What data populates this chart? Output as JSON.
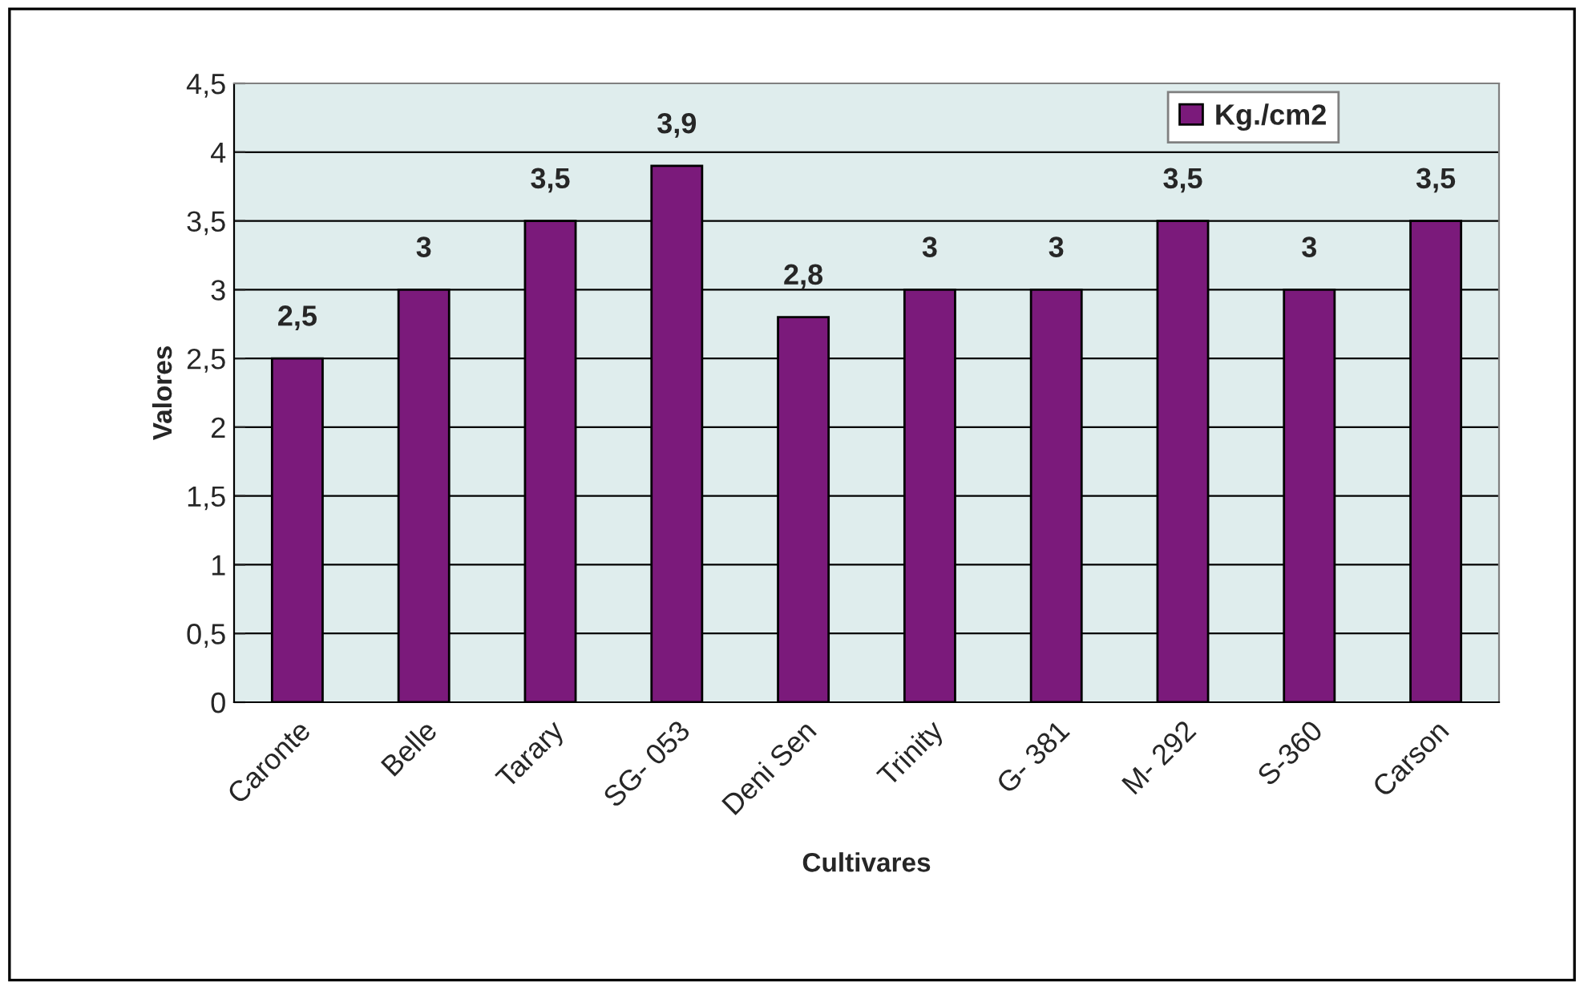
{
  "chart_data": {
    "type": "bar",
    "xlabel": "Cultivares",
    "ylabel": "Valores",
    "categories": [
      "Caronte",
      "Belle",
      "Tarary",
      "SG- 053",
      "Deni Sen",
      "Trinity",
      "G- 381",
      "M- 292",
      "S-360",
      "Carson"
    ],
    "series": [
      {
        "name": "Kg./cm2",
        "color": "#7b1a7b",
        "values": [
          2.5,
          3,
          3.5,
          3.9,
          2.8,
          3,
          3,
          3.5,
          3,
          3.5
        ],
        "value_labels": [
          "2,5",
          "3",
          "3,5",
          "3,9",
          "2,8",
          "3",
          "3",
          "3,5",
          "3",
          "3,5"
        ]
      }
    ],
    "ylim": [
      0,
      4.5
    ],
    "yticks": [
      0,
      {
        "value": 0.5,
        "label": "0,5"
      },
      1,
      {
        "value": 1.5,
        "label": "1,5"
      },
      2,
      {
        "value": 2.5,
        "label": "2,5"
      },
      3,
      {
        "value": 3.5,
        "label": "3,5"
      },
      4,
      {
        "value": 4.5,
        "label": "4,5"
      }
    ],
    "grid": "y",
    "legend": "top right"
  }
}
